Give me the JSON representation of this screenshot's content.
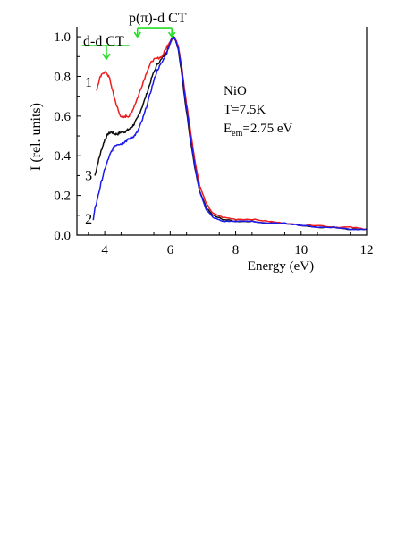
{
  "chart_data": {
    "type": "line",
    "xlabel": "Energy (eV)",
    "ylabel": "I (rel. units)",
    "xlim": [
      3.15,
      12.0
    ],
    "ylim": [
      0.0,
      1.05
    ],
    "xticks": [
      4,
      6,
      8,
      10,
      12
    ],
    "xtick_labels": [
      "4",
      "6",
      "8",
      "10",
      "12"
    ],
    "yticks": [
      0.0,
      0.2,
      0.4,
      0.6,
      0.8,
      1.0
    ],
    "ytick_labels": [
      "0.0",
      "0.2",
      "0.4",
      "0.6",
      "0.8",
      "1.0"
    ],
    "grid": false,
    "series": [
      {
        "name": "1",
        "color": "#ee1c1c",
        "x": [
          3.75,
          3.85,
          3.95,
          4.05,
          4.15,
          4.25,
          4.35,
          4.45,
          4.55,
          4.65,
          4.75,
          4.85,
          5.0,
          5.15,
          5.3,
          5.45,
          5.6,
          5.75,
          5.9,
          6.0,
          6.05,
          6.1,
          6.15,
          6.25,
          6.35,
          6.45,
          6.6,
          6.75,
          6.9,
          7.1,
          7.3,
          7.6,
          8.0,
          8.5,
          9.0,
          9.5,
          10.0,
          10.5,
          11.0,
          11.5,
          12.0
        ],
        "y": [
          0.73,
          0.79,
          0.82,
          0.82,
          0.79,
          0.72,
          0.66,
          0.61,
          0.59,
          0.6,
          0.6,
          0.63,
          0.69,
          0.76,
          0.83,
          0.88,
          0.89,
          0.9,
          0.95,
          0.98,
          0.99,
          1.0,
          0.99,
          0.95,
          0.85,
          0.72,
          0.55,
          0.38,
          0.25,
          0.16,
          0.11,
          0.09,
          0.08,
          0.08,
          0.07,
          0.06,
          0.05,
          0.05,
          0.04,
          0.04,
          0.03
        ]
      },
      {
        "name": "2",
        "color": "#1a1aee",
        "x": [
          3.65,
          3.7,
          3.8,
          3.9,
          4.0,
          4.1,
          4.2,
          4.3,
          4.4,
          4.5,
          4.6,
          4.7,
          4.8,
          4.9,
          5.0,
          5.15,
          5.3,
          5.45,
          5.6,
          5.75,
          5.9,
          6.0,
          6.05,
          6.1,
          6.15,
          6.25,
          6.35,
          6.45,
          6.6,
          6.75,
          6.9,
          7.1,
          7.3,
          7.6,
          8.0,
          8.5,
          9.0,
          9.5,
          10.0,
          10.5,
          11.0,
          11.5,
          12.0
        ],
        "y": [
          0.08,
          0.13,
          0.2,
          0.27,
          0.33,
          0.38,
          0.42,
          0.45,
          0.46,
          0.46,
          0.47,
          0.48,
          0.49,
          0.5,
          0.52,
          0.58,
          0.66,
          0.75,
          0.83,
          0.87,
          0.92,
          0.97,
          0.99,
          1.0,
          0.99,
          0.94,
          0.84,
          0.7,
          0.52,
          0.35,
          0.22,
          0.13,
          0.09,
          0.07,
          0.07,
          0.07,
          0.06,
          0.06,
          0.05,
          0.04,
          0.04,
          0.03,
          0.03
        ]
      },
      {
        "name": "3",
        "color": "#111111",
        "x": [
          3.7,
          3.8,
          3.9,
          4.0,
          4.1,
          4.2,
          4.3,
          4.4,
          4.5,
          4.6,
          4.7,
          4.8,
          4.9,
          5.0,
          5.15,
          5.3,
          5.45,
          5.6,
          5.75,
          5.9,
          6.0,
          6.05,
          6.1,
          6.15,
          6.25,
          6.35,
          6.45,
          6.6,
          6.75,
          6.9,
          7.1,
          7.3,
          7.6,
          8.0,
          8.5,
          9.0,
          9.5,
          10.0,
          10.5,
          11.0,
          11.5,
          12.0
        ],
        "y": [
          0.3,
          0.37,
          0.43,
          0.48,
          0.51,
          0.52,
          0.51,
          0.51,
          0.52,
          0.52,
          0.53,
          0.54,
          0.56,
          0.59,
          0.65,
          0.72,
          0.8,
          0.86,
          0.89,
          0.93,
          0.97,
          0.99,
          1.0,
          0.99,
          0.93,
          0.82,
          0.68,
          0.5,
          0.34,
          0.22,
          0.14,
          0.1,
          0.08,
          0.07,
          0.07,
          0.06,
          0.06,
          0.05,
          0.04,
          0.04,
          0.03,
          0.03
        ]
      }
    ],
    "curve_labels": [
      {
        "text": "1",
        "x": 3.4,
        "y": 0.77
      },
      {
        "text": "3",
        "x": 3.4,
        "y": 0.3
      },
      {
        "text": "2",
        "x": 3.4,
        "y": 0.08
      }
    ],
    "annotations": {
      "dd_label": "d-d CT",
      "pd_label_main": "p(π)-d CT",
      "info_material": "NiO",
      "info_temp": "T=7.5K",
      "info_em_prefix": "E",
      "info_em_sub": "em",
      "info_em_value": "=2.75 eV",
      "bracket_color": "#22dd22",
      "dd_bracket": {
        "x_start": 3.3,
        "x_end": 4.75,
        "y": 0.955,
        "arrow_x": 4.05
      },
      "pd_bracket": {
        "x_start": 5.0,
        "x_end": 6.05,
        "y": 1.045
      }
    }
  }
}
